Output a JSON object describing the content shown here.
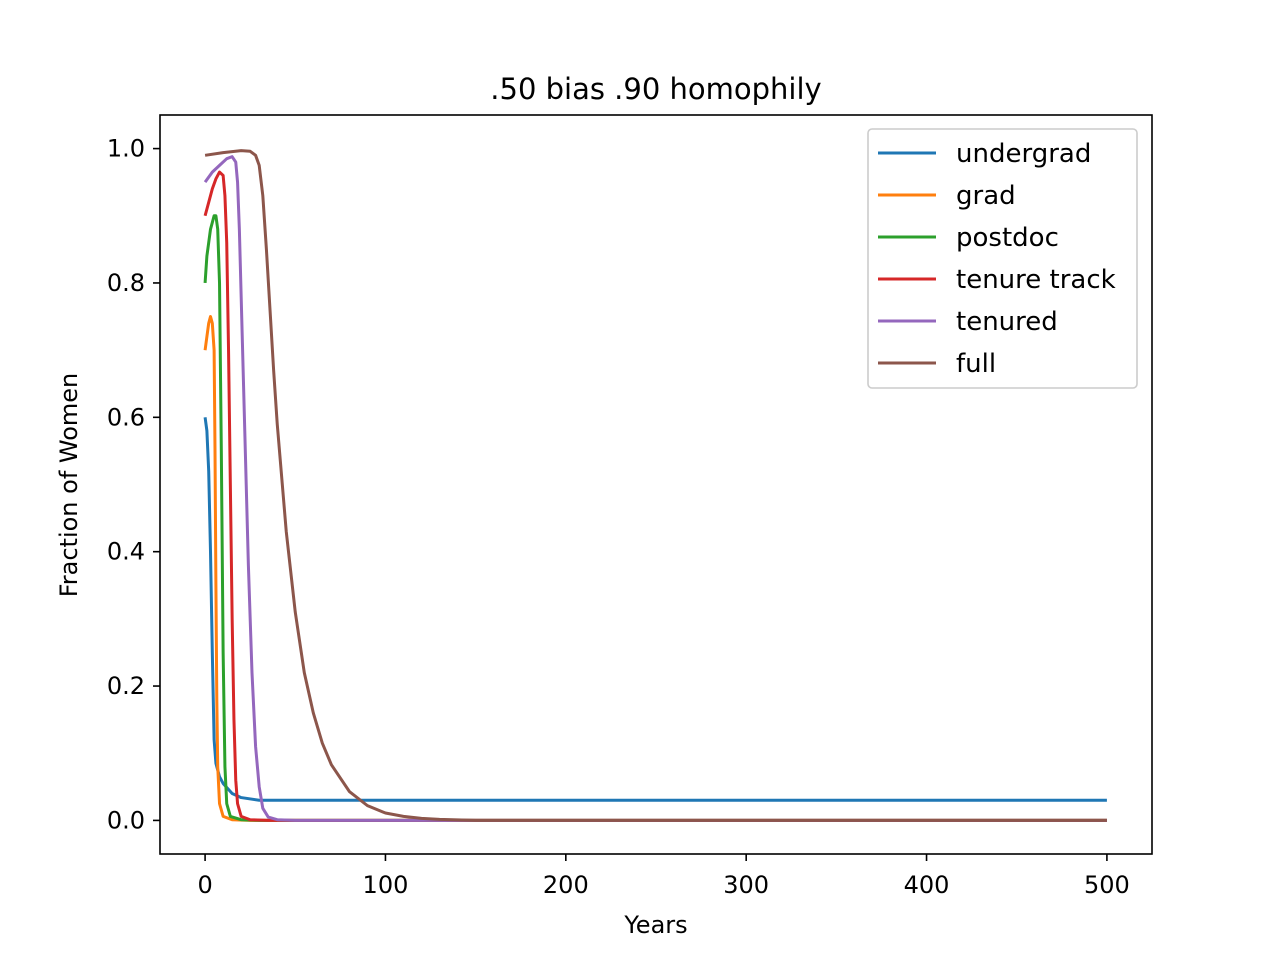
{
  "chart_data": {
    "type": "line",
    "title": ".50 bias .90 homophily",
    "xlabel": "Years",
    "ylabel": "Fraction of Women",
    "xlim": [
      -25,
      525
    ],
    "ylim": [
      -0.05,
      1.05
    ],
    "xticks": [
      0,
      100,
      200,
      300,
      400,
      500
    ],
    "xtick_labels": [
      "0",
      "100",
      "200",
      "300",
      "400",
      "500"
    ],
    "yticks": [
      0.0,
      0.2,
      0.4,
      0.6,
      0.8,
      1.0
    ],
    "ytick_labels": [
      "0.0",
      "0.2",
      "0.4",
      "0.6",
      "0.8",
      "1.0"
    ],
    "grid": false,
    "legend_position": "upper-right",
    "series": [
      {
        "name": "undergrad",
        "color": "#1f77b4",
        "points": [
          [
            0,
            0.6
          ],
          [
            1,
            0.58
          ],
          [
            2,
            0.52
          ],
          [
            3,
            0.4
          ],
          [
            4,
            0.25
          ],
          [
            5,
            0.12
          ],
          [
            6,
            0.085
          ],
          [
            8,
            0.065
          ],
          [
            10,
            0.055
          ],
          [
            15,
            0.04
          ],
          [
            20,
            0.034
          ],
          [
            30,
            0.03
          ],
          [
            50,
            0.03
          ],
          [
            100,
            0.03
          ],
          [
            200,
            0.03
          ],
          [
            300,
            0.03
          ],
          [
            400,
            0.03
          ],
          [
            500,
            0.03
          ]
        ]
      },
      {
        "name": "grad",
        "color": "#ff7f0e",
        "points": [
          [
            0,
            0.7
          ],
          [
            1,
            0.72
          ],
          [
            2,
            0.74
          ],
          [
            3,
            0.75
          ],
          [
            4,
            0.74
          ],
          [
            5,
            0.7
          ],
          [
            5.5,
            0.55
          ],
          [
            6,
            0.35
          ],
          [
            6.5,
            0.18
          ],
          [
            7,
            0.08
          ],
          [
            8,
            0.025
          ],
          [
            10,
            0.006
          ],
          [
            15,
            0.001
          ],
          [
            25,
            0.0
          ],
          [
            100,
            0.0
          ],
          [
            200,
            0.0
          ],
          [
            300,
            0.0
          ],
          [
            400,
            0.0
          ],
          [
            500,
            0.0
          ]
        ]
      },
      {
        "name": "postdoc",
        "color": "#2ca02c",
        "points": [
          [
            0,
            0.8
          ],
          [
            1,
            0.84
          ],
          [
            2,
            0.86
          ],
          [
            3,
            0.88
          ],
          [
            4,
            0.89
          ],
          [
            5,
            0.9
          ],
          [
            6,
            0.9
          ],
          [
            7,
            0.88
          ],
          [
            8,
            0.8
          ],
          [
            9,
            0.55
          ],
          [
            10,
            0.25
          ],
          [
            11,
            0.08
          ],
          [
            12,
            0.025
          ],
          [
            14,
            0.006
          ],
          [
            20,
            0.001
          ],
          [
            30,
            0.0
          ],
          [
            100,
            0.0
          ],
          [
            200,
            0.0
          ],
          [
            300,
            0.0
          ],
          [
            400,
            0.0
          ],
          [
            500,
            0.0
          ]
        ]
      },
      {
        "name": "tenure track",
        "color": "#d62728",
        "points": [
          [
            0,
            0.9
          ],
          [
            2,
            0.92
          ],
          [
            4,
            0.94
          ],
          [
            6,
            0.955
          ],
          [
            8,
            0.965
          ],
          [
            10,
            0.96
          ],
          [
            11,
            0.93
          ],
          [
            12,
            0.86
          ],
          [
            13,
            0.7
          ],
          [
            14,
            0.5
          ],
          [
            15,
            0.3
          ],
          [
            16,
            0.15
          ],
          [
            17,
            0.06
          ],
          [
            18,
            0.025
          ],
          [
            20,
            0.006
          ],
          [
            25,
            0.001
          ],
          [
            35,
            0.0
          ],
          [
            100,
            0.0
          ],
          [
            200,
            0.0
          ],
          [
            300,
            0.0
          ],
          [
            400,
            0.0
          ],
          [
            500,
            0.0
          ]
        ]
      },
      {
        "name": "tenured",
        "color": "#9467bd",
        "points": [
          [
            0,
            0.95
          ],
          [
            4,
            0.965
          ],
          [
            8,
            0.975
          ],
          [
            12,
            0.985
          ],
          [
            15,
            0.988
          ],
          [
            17,
            0.98
          ],
          [
            18,
            0.95
          ],
          [
            19,
            0.88
          ],
          [
            20,
            0.78
          ],
          [
            22,
            0.58
          ],
          [
            24,
            0.38
          ],
          [
            26,
            0.22
          ],
          [
            28,
            0.11
          ],
          [
            30,
            0.05
          ],
          [
            32,
            0.018
          ],
          [
            35,
            0.005
          ],
          [
            40,
            0.001
          ],
          [
            50,
            0.0
          ],
          [
            100,
            0.0
          ],
          [
            200,
            0.0
          ],
          [
            300,
            0.0
          ],
          [
            400,
            0.0
          ],
          [
            500,
            0.0
          ]
        ]
      },
      {
        "name": "full",
        "color": "#8c564b",
        "points": [
          [
            0,
            0.99
          ],
          [
            10,
            0.994
          ],
          [
            20,
            0.997
          ],
          [
            25,
            0.996
          ],
          [
            28,
            0.99
          ],
          [
            30,
            0.975
          ],
          [
            32,
            0.93
          ],
          [
            34,
            0.85
          ],
          [
            36,
            0.76
          ],
          [
            38,
            0.67
          ],
          [
            40,
            0.59
          ],
          [
            45,
            0.43
          ],
          [
            50,
            0.31
          ],
          [
            55,
            0.22
          ],
          [
            60,
            0.16
          ],
          [
            65,
            0.115
          ],
          [
            70,
            0.083
          ],
          [
            80,
            0.043
          ],
          [
            90,
            0.022
          ],
          [
            100,
            0.011
          ],
          [
            110,
            0.006
          ],
          [
            120,
            0.003
          ],
          [
            130,
            0.0015
          ],
          [
            150,
            0.0
          ],
          [
            200,
            0.0
          ],
          [
            300,
            0.0
          ],
          [
            400,
            0.0
          ],
          [
            500,
            0.0
          ]
        ]
      }
    ]
  }
}
